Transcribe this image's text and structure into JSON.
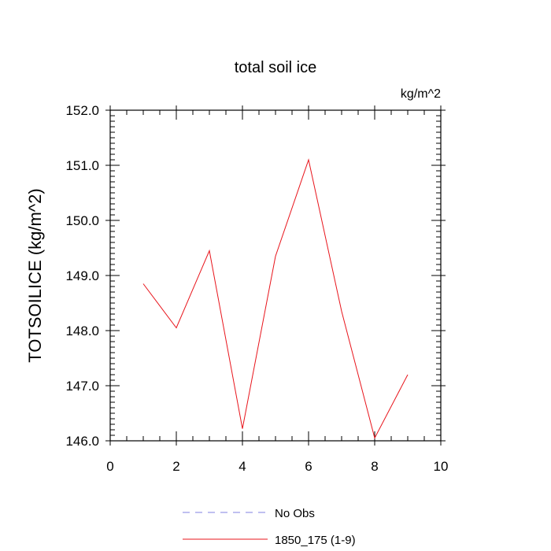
{
  "chart_data": {
    "type": "line",
    "title": "total soil ice",
    "units_label": "kg/m^2",
    "ylabel": "TOTSOILICE  (kg/m^2)",
    "xlabel": "",
    "xlim": [
      0,
      10
    ],
    "ylim": [
      146.0,
      152.0
    ],
    "x_ticks": [
      0,
      2,
      4,
      6,
      8,
      10
    ],
    "x_tick_labels": [
      "0",
      "2",
      "4",
      "6",
      "8",
      "10"
    ],
    "y_ticks": [
      146.0,
      147.0,
      148.0,
      149.0,
      150.0,
      151.0,
      152.0
    ],
    "y_tick_labels": [
      "146.0",
      "147.0",
      "148.0",
      "149.0",
      "150.0",
      "151.0",
      "152.0"
    ],
    "grid": false,
    "legend_position": "bottom-center",
    "series": [
      {
        "name": "1850_175 (1-9)",
        "color": "#e8141b",
        "style": "solid",
        "x": [
          1,
          2,
          3,
          4,
          5,
          6,
          7,
          8,
          9
        ],
        "y": [
          148.85,
          148.05,
          149.45,
          146.22,
          149.35,
          151.1,
          148.35,
          146.05,
          147.2
        ]
      }
    ],
    "legend": [
      {
        "label": "No Obs",
        "color": "#8080e0",
        "style": "dashed"
      },
      {
        "label": "1850_175 (1-9)",
        "color": "#e8141b",
        "style": "solid"
      }
    ]
  }
}
